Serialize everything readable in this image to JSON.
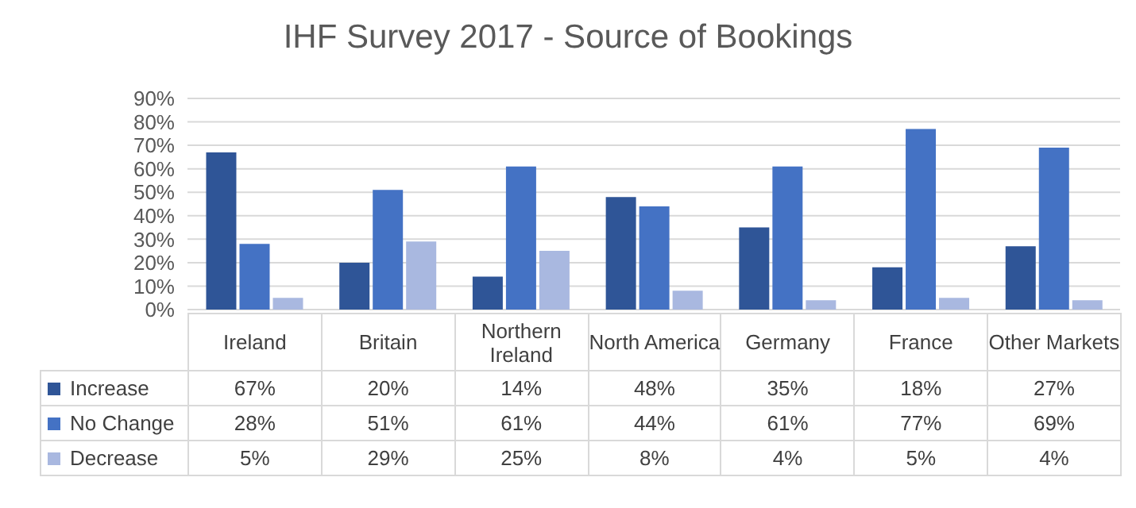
{
  "chart_data": {
    "type": "bar",
    "title": "IHF Survey 2017 - Source of Bookings",
    "categories": [
      "Ireland",
      "Britain",
      "Northern Ireland",
      "North America",
      "Germany",
      "France",
      "Other Markets"
    ],
    "series": [
      {
        "name": "Increase",
        "color": "#2f5597",
        "values": [
          67,
          20,
          14,
          48,
          35,
          18,
          27
        ],
        "value_labels": [
          "67%",
          "20%",
          "14%",
          "48%",
          "35%",
          "18%",
          "27%"
        ]
      },
      {
        "name": "No Change",
        "color": "#4472c4",
        "values": [
          28,
          51,
          61,
          44,
          61,
          77,
          69
        ],
        "value_labels": [
          "28%",
          "51%",
          "61%",
          "44%",
          "61%",
          "77%",
          "69%"
        ]
      },
      {
        "name": "Decrease",
        "color": "#a9b8e0",
        "values": [
          5,
          29,
          25,
          8,
          4,
          5,
          4
        ],
        "value_labels": [
          "5%",
          "29%",
          "25%",
          "8%",
          "4%",
          "5%",
          "4%"
        ]
      }
    ],
    "ylim": [
      0,
      90
    ],
    "yticks": [
      {
        "value": 0,
        "label": "0%"
      },
      {
        "value": 10,
        "label": "10%"
      },
      {
        "value": 20,
        "label": "20%"
      },
      {
        "value": 30,
        "label": "30%"
      },
      {
        "value": 40,
        "label": "40%"
      },
      {
        "value": 50,
        "label": "50%"
      },
      {
        "value": 60,
        "label": "60%"
      },
      {
        "value": 70,
        "label": "70%"
      },
      {
        "value": 80,
        "label": "80%"
      },
      {
        "value": 90,
        "label": "90%"
      }
    ],
    "grid": "y",
    "legend": "bottom"
  }
}
